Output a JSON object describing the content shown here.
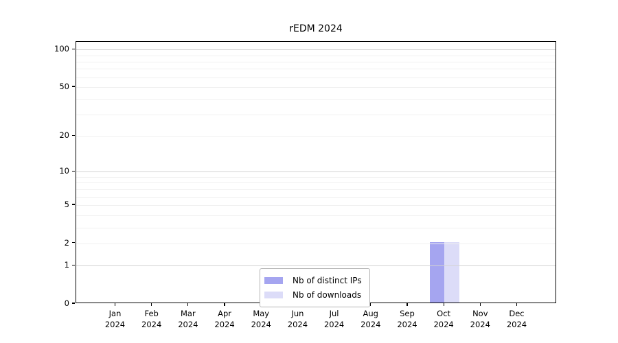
{
  "chart_data": {
    "type": "bar",
    "title": "rEDM 2024",
    "categories": [
      "Jan",
      "Feb",
      "Mar",
      "Apr",
      "May",
      "Jun",
      "Jul",
      "Aug",
      "Sep",
      "Oct",
      "Nov",
      "Dec"
    ],
    "category_year": "2024",
    "series": [
      {
        "name": "Nb of distinct IPs",
        "color": "#a5a5f0",
        "values": [
          0,
          0,
          0,
          0,
          0,
          0,
          0,
          0,
          0,
          2,
          0,
          0
        ]
      },
      {
        "name": "Nb of downloads",
        "color": "#dcdcf8",
        "values": [
          0,
          0,
          0,
          0,
          0,
          0,
          0,
          0,
          0,
          2,
          0,
          0
        ]
      }
    ],
    "yscale": "log1p",
    "ylim": [
      0,
      115
    ],
    "yticks": [
      0,
      1,
      2,
      5,
      10,
      20,
      50,
      100
    ],
    "major_gridlines": [
      1,
      10,
      100
    ],
    "minor_gridlines": [
      2,
      3,
      4,
      5,
      6,
      7,
      8,
      9,
      20,
      30,
      40,
      50,
      60,
      70,
      80,
      90
    ],
    "grid": true,
    "legend_position": "lower center"
  },
  "colors": {
    "axis": "#000000",
    "major_grid": "#d2d2d2",
    "minor_grid": "#f0f0f0",
    "text": "#000000",
    "legend_border": "#b4b4b4",
    "background": "#ffffff"
  }
}
